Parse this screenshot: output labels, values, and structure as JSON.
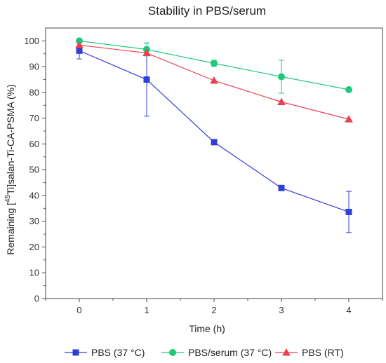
{
  "chart_data": {
    "type": "line",
    "title": "Stability in PBS/serum",
    "xlabel": "Time (h)",
    "ylabel": "Remaining [45Ti]salan-Ti-CA-PSMA (%)",
    "ylabel_parts": {
      "pre": "Remaining [",
      "sup": "45",
      "post": "Ti]salan-Ti-CA-PSMA (%)"
    },
    "x": [
      0,
      1,
      2,
      3,
      4
    ],
    "xlim": [
      -0.5,
      4.5
    ],
    "ylim": [
      0,
      105
    ],
    "xticks": [
      0,
      1,
      2,
      3,
      4
    ],
    "yticks": [
      0,
      10,
      20,
      30,
      40,
      50,
      60,
      70,
      80,
      90,
      100
    ],
    "grid": false,
    "legend_position": "bottom",
    "series": [
      {
        "name": "PBS (37 °C)",
        "color": "#2f3fd6",
        "marker": "square",
        "values": [
          96.2,
          85.0,
          60.7,
          42.9,
          33.6
        ],
        "errors": [
          3.2,
          14.2,
          0,
          0,
          8.0
        ]
      },
      {
        "name": "PBS/serum (37 °C)",
        "color": "#1fc97c",
        "marker": "circle",
        "values": [
          100.0,
          96.7,
          91.3,
          86.1,
          81.1
        ],
        "errors": [
          0,
          2.5,
          1.2,
          6.4,
          0
        ]
      },
      {
        "name": "PBS (RT)",
        "color": "#e8424f",
        "marker": "triangle",
        "values": [
          98.4,
          95.3,
          84.6,
          76.3,
          69.6
        ],
        "errors": [
          0,
          0,
          0,
          0,
          0
        ]
      }
    ]
  }
}
